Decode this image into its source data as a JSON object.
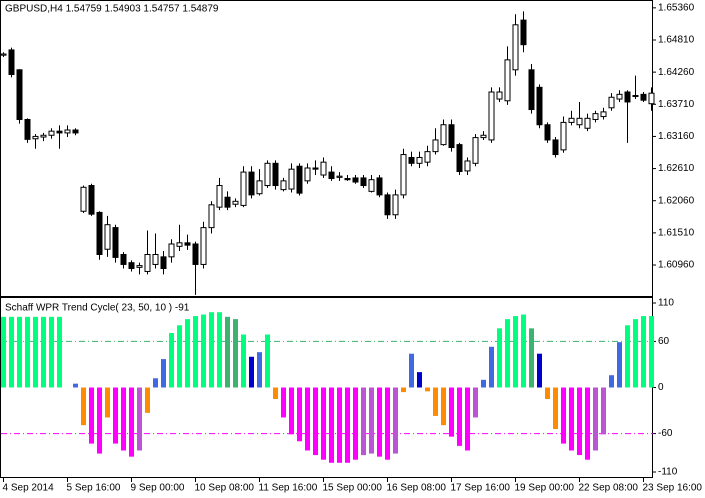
{
  "chart_data": [
    {
      "type": "candlestick",
      "title": "GBPUSD,H4 1.54759 1.54903 1.54757 1.54879",
      "categories": [
        "4 Sep 2014",
        null,
        null,
        null,
        null,
        null,
        null,
        null,
        "5 Sep 16:00",
        null,
        null,
        null,
        null,
        null,
        null,
        null,
        "9 Sep 00:00",
        null,
        null,
        null,
        null,
        null,
        null,
        null,
        "10 Sep 08:00",
        null,
        null,
        null,
        null,
        null,
        null,
        null,
        "11 Sep 16:00",
        null,
        null,
        null,
        null,
        null,
        null,
        null,
        "15 Sep 00:00",
        null,
        null,
        null,
        null,
        null,
        null,
        null,
        "16 Sep 08:00",
        null,
        null,
        null,
        null,
        null,
        null,
        null,
        "17 Sep 16:00",
        null,
        null,
        null,
        null,
        null,
        null,
        null,
        "19 Sep 00:00",
        null,
        null,
        null,
        null,
        null,
        null,
        null,
        "22 Sep 08:00",
        null,
        null,
        null,
        null,
        null,
        null,
        null,
        "23 Sep 16:00",
        null
      ],
      "open": [
        1.6455,
        1.6464,
        1.643,
        1.6345,
        1.6312,
        1.6315,
        1.6318,
        1.6325,
        1.6322,
        1.6327,
        1.6188,
        1.6232,
        1.6186,
        1.6123,
        1.616,
        1.6114,
        1.61,
        1.6092,
        1.6085,
        1.6097,
        1.611,
        1.611,
        1.6128,
        1.6134,
        1.6132,
        1.6097,
        1.616,
        1.6195,
        1.6212,
        1.62,
        1.6198,
        1.6255,
        1.6218,
        1.6232,
        1.627,
        1.6225,
        1.6226,
        1.6265,
        1.624,
        1.6262,
        1.625,
        1.6255,
        1.6246,
        1.6244,
        1.6245,
        1.6245,
        1.6222,
        1.6245,
        1.6216,
        1.6182,
        1.6216,
        1.628,
        1.627,
        1.6272,
        1.629,
        1.6302,
        1.6336,
        1.6302,
        1.6257,
        1.627,
        1.6314,
        1.631,
        1.638,
        1.6377,
        1.643,
        1.6515,
        1.643,
        1.64,
        1.6336,
        1.631,
        1.6293,
        1.634,
        1.6336,
        1.633,
        1.6345,
        1.635,
        1.6365,
        1.638,
        1.6392,
        1.6385,
        1.6388,
        1.6372
      ],
      "high": [
        1.646,
        1.6468,
        1.6431,
        1.6347,
        1.632,
        1.6322,
        1.633,
        1.6335,
        1.6335,
        1.633,
        1.6232,
        1.6235,
        1.6188,
        1.618,
        1.6165,
        1.6118,
        1.6104,
        1.61,
        1.6155,
        1.615,
        1.612,
        1.614,
        1.6165,
        1.6148,
        1.6136,
        1.617,
        1.6205,
        1.6245,
        1.6222,
        1.621,
        1.6265,
        1.6265,
        1.626,
        1.6275,
        1.6275,
        1.6245,
        1.627,
        1.627,
        1.627,
        1.6275,
        1.628,
        1.6265,
        1.6255,
        1.625,
        1.625,
        1.625,
        1.625,
        1.625,
        1.622,
        1.6225,
        1.6295,
        1.629,
        1.629,
        1.63,
        1.633,
        1.6345,
        1.6345,
        1.6305,
        1.628,
        1.632,
        1.6325,
        1.64,
        1.64,
        1.647,
        1.6525,
        1.653,
        1.644,
        1.6405,
        1.634,
        1.6315,
        1.635,
        1.636,
        1.6375,
        1.6355,
        1.636,
        1.6365,
        1.639,
        1.6395,
        1.6395,
        1.642,
        1.6392,
        1.64
      ],
      "low": [
        1.6452,
        1.6417,
        1.6338,
        1.6305,
        1.6295,
        1.6308,
        1.6312,
        1.6295,
        1.6315,
        1.6318,
        1.6185,
        1.618,
        1.6105,
        1.611,
        1.61,
        1.609,
        1.6085,
        1.608,
        1.608,
        1.609,
        1.608,
        1.61,
        1.612,
        1.6122,
        1.6045,
        1.609,
        1.615,
        1.619,
        1.619,
        1.6195,
        1.6195,
        1.621,
        1.6215,
        1.6228,
        1.6225,
        1.6222,
        1.622,
        1.6215,
        1.6235,
        1.625,
        1.6245,
        1.624,
        1.624,
        1.624,
        1.6235,
        1.6228,
        1.622,
        1.6212,
        1.6175,
        1.6175,
        1.621,
        1.6265,
        1.6262,
        1.6265,
        1.6285,
        1.63,
        1.629,
        1.625,
        1.625,
        1.6265,
        1.631,
        1.6305,
        1.6375,
        1.637,
        1.642,
        1.646,
        1.6355,
        1.633,
        1.6305,
        1.628,
        1.6288,
        1.6335,
        1.633,
        1.6325,
        1.634,
        1.6345,
        1.636,
        1.6375,
        1.6305,
        1.638,
        1.6375,
        1.636
      ],
      "close": [
        1.6457,
        1.6422,
        1.6345,
        1.6311,
        1.6316,
        1.6318,
        1.6325,
        1.6322,
        1.6327,
        1.6322,
        1.6229,
        1.6183,
        1.6114,
        1.6165,
        1.6109,
        1.6097,
        1.609,
        1.6095,
        1.6114,
        1.6114,
        1.609,
        1.6132,
        1.6134,
        1.613,
        1.6097,
        1.616,
        1.6199,
        1.6232,
        1.6195,
        1.6205,
        1.6255,
        1.6216,
        1.624,
        1.627,
        1.6232,
        1.624,
        1.626,
        1.6219,
        1.6262,
        1.626,
        1.6272,
        1.6244,
        1.6248,
        1.6242,
        1.6238,
        1.6232,
        1.6242,
        1.6216,
        1.6182,
        1.6216,
        1.6285,
        1.627,
        1.628,
        1.629,
        1.631,
        1.6336,
        1.6297,
        1.6256,
        1.6274,
        1.6314,
        1.6318,
        1.6392,
        1.6392,
        1.6447,
        1.6507,
        1.6473,
        1.6362,
        1.6336,
        1.631,
        1.6285,
        1.634,
        1.6347,
        1.6347,
        1.6347,
        1.6355,
        1.6358,
        1.6383,
        1.6388,
        1.6375,
        1.6386,
        1.6378,
        1.639
      ],
      "up_color": "#ffffff",
      "down_color": "#000000",
      "ylim": [
        1.6043,
        1.6546
      ],
      "yticks": [
        {
          "value": 1.6536,
          "label": "1.65360"
        },
        {
          "value": 1.6481,
          "label": "1.64810"
        },
        {
          "value": 1.6426,
          "label": "1.64260"
        },
        {
          "value": 1.6371,
          "label": "1.63710"
        },
        {
          "value": 1.6316,
          "label": "1.63160"
        },
        {
          "value": 1.6261,
          "label": "1.62610"
        },
        {
          "value": 1.6206,
          "label": "1.62060"
        },
        {
          "value": 1.6151,
          "label": "1.61510"
        },
        {
          "value": 1.6096,
          "label": "1.60960"
        }
      ]
    },
    {
      "type": "bar",
      "title": "Schaff WPR Trend Cycle( 23, 50, 10 ) -91",
      "values": [
        92,
        92,
        92,
        92,
        92,
        92,
        92,
        92,
        0,
        5,
        -49,
        -73,
        -86,
        -39,
        -73,
        -82,
        -90,
        -82,
        -33,
        12,
        37,
        71,
        81,
        89,
        93,
        95,
        98,
        98,
        92,
        89,
        69,
        40,
        46,
        69,
        -15,
        -39,
        -61,
        -70,
        -82,
        -88,
        -94,
        -98,
        -98,
        -98,
        -94,
        -88,
        -86,
        -90,
        -94,
        -86,
        -6,
        44,
        20,
        -5,
        -37,
        -49,
        -64,
        -76,
        -82,
        -39,
        10,
        53,
        77,
        89,
        93,
        95,
        77,
        44,
        -15,
        -54,
        -73,
        -82,
        -88,
        -94,
        -82,
        -61,
        16,
        59,
        81,
        89,
        93,
        93
      ],
      "colors": [
        "#00ff7f",
        "#00ff7f",
        "#00ff7f",
        "#00ff7f",
        "#00ff7f",
        "#00ff7f",
        "#00ff7f",
        "#00ff7f",
        "#4169e1",
        "#4169e1",
        "#ff8c00",
        "#ff00ff",
        "#ff00ff",
        "#ff8c00",
        "#ff00ff",
        "#ff00ff",
        "#ff00ff",
        "#ba55d3",
        "#ff8c00",
        "#4169e1",
        "#4169e1",
        "#00ff7f",
        "#00ff7f",
        "#00ff7f",
        "#00ff7f",
        "#00ff7f",
        "#00ff7f",
        "#00ff7f",
        "#3cb371",
        "#3cb371",
        "#00ff7f",
        "#0000cd",
        "#4169e1",
        "#00ff7f",
        "#ff8c00",
        "#ff00ff",
        "#ff00ff",
        "#ff00ff",
        "#ff00ff",
        "#ff00ff",
        "#ff00ff",
        "#ff00ff",
        "#ff00ff",
        "#ff00ff",
        "#ff00ff",
        "#ba55d3",
        "#ba55d3",
        "#ff00ff",
        "#ff00ff",
        "#ba55d3",
        "#ff8c00",
        "#4169e1",
        "#0000cd",
        "#ff8c00",
        "#ff8c00",
        "#ff8c00",
        "#ff00ff",
        "#ff00ff",
        "#ff00ff",
        "#ba55d3",
        "#4169e1",
        "#4169e1",
        "#00ff7f",
        "#00ff7f",
        "#00ff7f",
        "#00ff7f",
        "#3cb371",
        "#0000cd",
        "#ff8c00",
        "#ff8c00",
        "#ff00ff",
        "#ff00ff",
        "#ff00ff",
        "#ff00ff",
        "#ba55d3",
        "#ba55d3",
        "#4169e1",
        "#4169e1",
        "#00ff7f",
        "#00ff7f",
        "#00ff7f",
        "#00ff7f"
      ],
      "levels": [
        {
          "value": 60,
          "color": "#3cb371"
        },
        {
          "value": -60,
          "color": "#ff00ff"
        }
      ],
      "ylim": [
        -110,
        110
      ],
      "yticks": [
        110,
        60,
        0,
        -60,
        -110
      ]
    }
  ]
}
